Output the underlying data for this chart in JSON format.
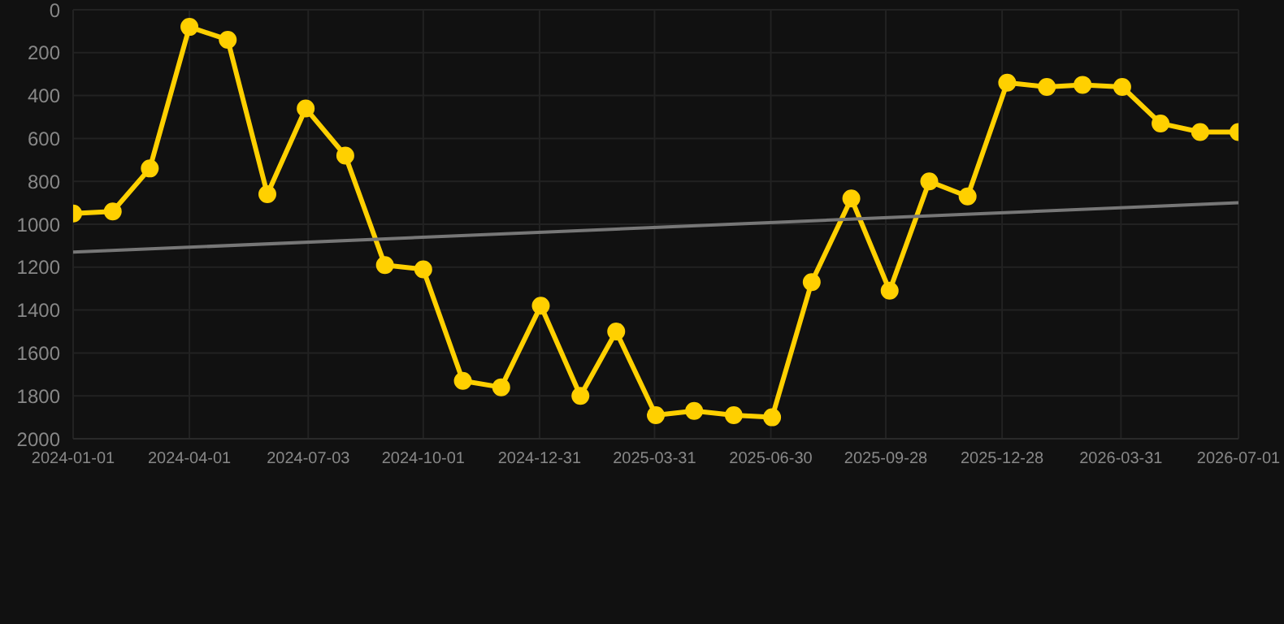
{
  "chart_data": {
    "type": "line",
    "x": [
      "2024-01-01",
      "2024-02-01",
      "2024-03-01",
      "2024-04-01",
      "2024-05-01",
      "2024-06-01",
      "2024-07-01",
      "2024-08-01",
      "2024-09-01",
      "2024-10-01",
      "2024-11-01",
      "2024-12-01",
      "2025-01-01",
      "2025-02-01",
      "2025-03-01",
      "2025-04-01",
      "2025-05-01",
      "2025-06-01",
      "2025-07-01",
      "2025-08-01",
      "2025-09-01",
      "2025-10-01",
      "2025-11-01",
      "2025-12-01",
      "2026-01-01",
      "2026-02-01",
      "2026-03-01",
      "2026-04-01",
      "2026-05-01",
      "2026-06-01",
      "2026-07-01"
    ],
    "series": [
      {
        "color": "#ffd000",
        "marker": "circle",
        "values": [
          950,
          940,
          740,
          80,
          140,
          860,
          460,
          680,
          1190,
          1210,
          1730,
          1760,
          1380,
          1800,
          1500,
          1890,
          1870,
          1890,
          1900,
          1270,
          880,
          1310,
          800,
          870,
          340,
          360,
          350,
          360,
          530,
          570,
          570
        ]
      },
      {
        "type": "line",
        "color": "#777777",
        "marker": "none",
        "x": [
          "2024-01-01",
          "2026-07-01"
        ],
        "values": [
          1130,
          900
        ]
      }
    ],
    "xlim": [
      "2024-01-01",
      "2026-07-01"
    ],
    "xticks": [
      "2024-01-01",
      "2024-04-01",
      "2024-07-03",
      "2024-10-01",
      "2024-12-31",
      "2025-03-31",
      "2025-06-30",
      "2025-09-28",
      "2025-12-28",
      "2026-03-31",
      "2026-07-01"
    ],
    "ylim": [
      2000,
      0
    ],
    "yticks": [
      0,
      200,
      400,
      600,
      800,
      1000,
      1200,
      1400,
      1600,
      1800,
      2000
    ],
    "grid": true
  }
}
